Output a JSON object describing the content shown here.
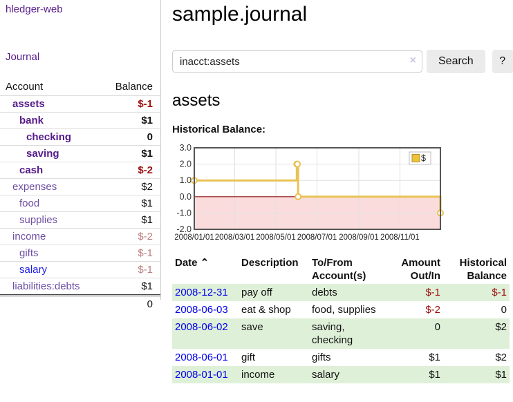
{
  "sidebar": {
    "brand": "hledger-web",
    "nav_journal": "Journal",
    "accounts_table": {
      "headers": [
        "Account",
        "Balance"
      ],
      "rows": [
        {
          "name": "assets",
          "balance": "$-1",
          "depth": 1,
          "bold": true,
          "dim": false
        },
        {
          "name": "bank",
          "balance": "$1",
          "depth": 2,
          "bold": true,
          "dim": false
        },
        {
          "name": "checking",
          "balance": "0",
          "depth": 3,
          "bold": true,
          "dim": false
        },
        {
          "name": "saving",
          "balance": "$1",
          "depth": 3,
          "bold": true,
          "dim": false
        },
        {
          "name": "cash",
          "balance": "$-2",
          "depth": 2,
          "bold": true,
          "dim": false
        },
        {
          "name": "expenses",
          "balance": "$2",
          "depth": 1,
          "bold": false,
          "dim": true
        },
        {
          "name": "food",
          "balance": "$1",
          "depth": 2,
          "bold": false,
          "dim": true
        },
        {
          "name": "supplies",
          "balance": "$1",
          "depth": 2,
          "bold": false,
          "dim": true
        },
        {
          "name": "income",
          "balance": "$-2",
          "depth": 1,
          "bold": false,
          "dim": true
        },
        {
          "name": "gifts",
          "balance": "$-1",
          "depth": 2,
          "bold": false,
          "dim": true
        },
        {
          "name": "salary",
          "balance": "$-1",
          "depth": 2,
          "bold": false,
          "dim": true,
          "blue": true
        },
        {
          "name": "liabilities:debts",
          "balance": "$1",
          "depth": 1,
          "bold": false,
          "dim": true
        }
      ],
      "total": "0"
    }
  },
  "header": {
    "title": "sample.journal"
  },
  "search": {
    "value": "inacct:assets",
    "clear_icon": "×",
    "button_label": "Search",
    "help_label": "?"
  },
  "account_page": {
    "heading": "assets",
    "chart_label": "Historical Balance:"
  },
  "chart_data": {
    "type": "line",
    "title": "Historical Balance",
    "step": true,
    "series": [
      {
        "name": "$",
        "points": [
          [
            "2008-01-01",
            1
          ],
          [
            "2008-06-01",
            2
          ],
          [
            "2008-06-02",
            2
          ],
          [
            "2008-06-03",
            0
          ],
          [
            "2008-12-31",
            -1
          ]
        ]
      }
    ],
    "x_range": [
      "2008-01-01",
      "2008-12-31"
    ],
    "x_ticks": [
      "2008/01/01",
      "2008/03/01",
      "2008/05/01",
      "2008/07/01",
      "2008/09/01",
      "2008/11/01"
    ],
    "y_ticks": [
      3.0,
      2.0,
      1.0,
      0.0,
      -1.0,
      -2.0
    ],
    "ylim": [
      -2,
      3
    ],
    "grid": true,
    "legend_position": "top-right",
    "legend": [
      {
        "label": "$",
        "color": "#ecc339"
      }
    ],
    "line_color": "#e9c254",
    "negative_region_color": "#fbdcdc",
    "zero_line_color": "#8f1010"
  },
  "register": {
    "columns": [
      {
        "label": "Date",
        "sort": "⌃"
      },
      {
        "label": "Description"
      },
      {
        "label": "To/From\nAccount(s)"
      },
      {
        "label": "Amount\nOut/In",
        "align": "right"
      },
      {
        "label": "Historical\nBalance",
        "align": "right"
      }
    ],
    "rows": [
      {
        "date": "2008-12-31",
        "description": "pay off",
        "accounts": "debts",
        "amount": "$-1",
        "balance": "$-1"
      },
      {
        "date": "2008-06-03",
        "description": "eat & shop",
        "accounts": "food, supplies",
        "amount": "$-2",
        "balance": "0"
      },
      {
        "date": "2008-06-02",
        "description": "save",
        "accounts": "saving,\nchecking",
        "amount": "0",
        "balance": "$2"
      },
      {
        "date": "2008-06-01",
        "description": "gift",
        "accounts": "gifts",
        "amount": "$1",
        "balance": "$2"
      },
      {
        "date": "2008-01-01",
        "description": "income",
        "accounts": "salary",
        "amount": "$1",
        "balance": "$1"
      }
    ]
  },
  "colors": {
    "link_purple": "#551a8b",
    "link_purple_dim": "#6e4fa3",
    "link_blue": "#0000ee",
    "negative_red": "#9d0f0f",
    "negative_red_dim": "#c08080",
    "row_stripe_green": "#dff0d8",
    "chart_gold": "#e9c254",
    "chart_negative_bg": "#fbdcdc",
    "zero_line_red": "#8f1010",
    "button_gray": "#ebebeb"
  }
}
